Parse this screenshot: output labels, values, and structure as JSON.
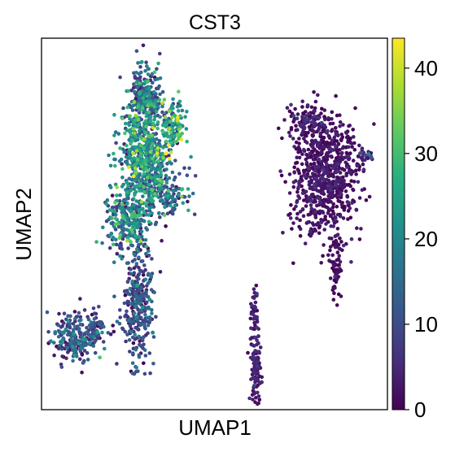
{
  "chart_data": {
    "type": "scatter",
    "title": "CST3",
    "xlabel": "UMAP1",
    "ylabel": "UMAP2",
    "xticks": [],
    "yticks": [],
    "colormap": "viridis",
    "colorbar": {
      "min": 0,
      "max": 43.5,
      "ticks": [
        0,
        10,
        20,
        30,
        40
      ],
      "tick_labels": [
        "0",
        "10",
        "20",
        "30",
        "40"
      ]
    },
    "xlim": [
      0,
      100
    ],
    "ylim": [
      0,
      100
    ],
    "grid": false,
    "clusters": [
      {
        "x": 29.5,
        "y": 68,
        "sx": 3.5,
        "sy": 6,
        "n": 550,
        "c_mean": 18,
        "c_sd": 9
      },
      {
        "x": 30,
        "y": 84,
        "sx": 2.5,
        "sy": 4.5,
        "n": 230,
        "c_mean": 14,
        "c_sd": 8
      },
      {
        "x": 25.5,
        "y": 51,
        "sx": 3.5,
        "sy": 4.5,
        "n": 280,
        "c_mean": 16,
        "c_sd": 9
      },
      {
        "x": 36,
        "y": 58,
        "sx": 3.5,
        "sy": 3,
        "n": 130,
        "c_mean": 13,
        "c_sd": 8
      },
      {
        "x": 38,
        "y": 76,
        "sx": 2,
        "sy": 4,
        "n": 120,
        "c_mean": 22,
        "c_sd": 9
      },
      {
        "x": 28,
        "y": 28,
        "sx": 2.3,
        "sy": 8,
        "n": 320,
        "c_mean": 9,
        "c_sd": 5
      },
      {
        "x": 10,
        "y": 19,
        "sx": 3.2,
        "sy": 3.2,
        "n": 210,
        "c_mean": 11,
        "c_sd": 6
      },
      {
        "x": 16.5,
        "y": 23,
        "sx": 1.5,
        "sy": 2.5,
        "n": 40,
        "c_mean": 9,
        "c_sd": 5
      },
      {
        "x": 82,
        "y": 63,
        "sx": 4.8,
        "sy": 8.5,
        "n": 780,
        "c_mean": 1.5,
        "c_sd": 2
      },
      {
        "x": 77,
        "y": 78,
        "sx": 2.3,
        "sy": 2.2,
        "n": 90,
        "c_mean": 2,
        "c_sd": 3
      },
      {
        "x": 85,
        "y": 39,
        "sx": 0.8,
        "sy": 4,
        "n": 60,
        "c_mean": 1,
        "c_sd": 1.5
      },
      {
        "x": 62,
        "y": 11,
        "sx": 0.8,
        "sy": 6,
        "n": 110,
        "c_mean": 3,
        "c_sd": 2
      },
      {
        "x": 61.5,
        "y": 27,
        "sx": 0.6,
        "sy": 3,
        "n": 35,
        "c_mean": 3,
        "c_sd": 2
      },
      {
        "x": 94,
        "y": 68.5,
        "sx": 1,
        "sy": 0.8,
        "n": 18,
        "c_mean": 5,
        "c_sd": 4
      }
    ]
  }
}
